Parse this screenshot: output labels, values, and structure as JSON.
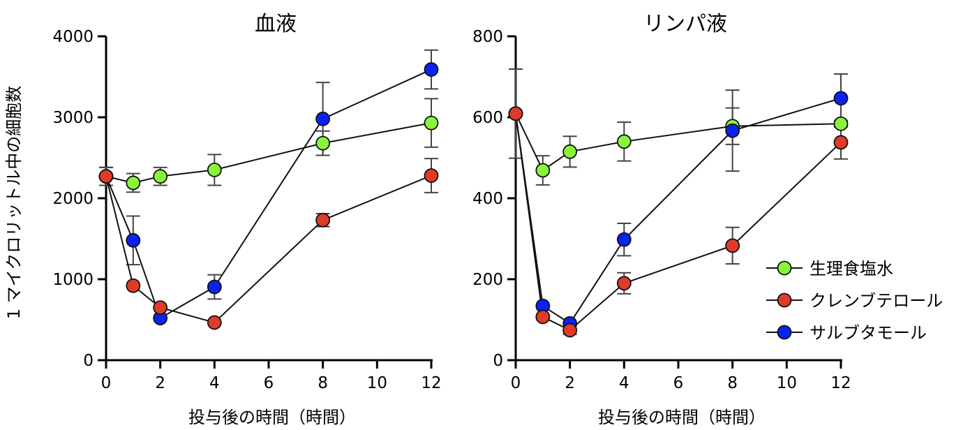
{
  "ylabel": "1 マイクロリットル中の細胞数",
  "legend": [
    {
      "name": "生理食塩水",
      "color": "#88f53a"
    },
    {
      "name": "クレンブテロール",
      "color": "#e03b2a"
    },
    {
      "name": "サルブタモール",
      "color": "#0a22f5"
    }
  ],
  "chart_data": [
    {
      "type": "line",
      "title": "血液",
      "xlabel": "投与後の時間（時間）",
      "ylabel": "1 マイクロリットル中の細胞数",
      "xlim": [
        0,
        12
      ],
      "ylim": [
        0,
        4000
      ],
      "xticks": [
        0,
        2,
        4,
        6,
        8,
        10,
        12
      ],
      "yticks": [
        0,
        1000,
        2000,
        3000,
        4000
      ],
      "x": [
        0,
        1,
        2,
        4,
        8,
        12
      ],
      "series": [
        {
          "name": "生理食塩水",
          "values": [
            2270,
            2190,
            2270,
            2350,
            2680,
            2930
          ],
          "error": [
            110,
            115,
            110,
            190,
            150,
            300
          ]
        },
        {
          "name": "クレンブテロール",
          "values": [
            2270,
            920,
            650,
            465,
            1730,
            2280
          ],
          "error": [
            110,
            0,
            0,
            0,
            80,
            210
          ]
        },
        {
          "name": "サルブタモール",
          "values": [
            2270,
            1480,
            520,
            905,
            2980,
            3590
          ],
          "error": [
            110,
            300,
            0,
            150,
            450,
            240
          ]
        }
      ]
    },
    {
      "type": "line",
      "title": "リンパ液",
      "xlabel": "投与後の時間（時間）",
      "xlim": [
        0,
        12
      ],
      "ylim": [
        0,
        800
      ],
      "xticks": [
        0,
        2,
        4,
        6,
        8,
        10,
        12
      ],
      "yticks": [
        0,
        200,
        400,
        600,
        800
      ],
      "x": [
        0,
        1,
        2,
        4,
        8,
        12
      ],
      "legend_position": "right",
      "series": [
        {
          "name": "生理食塩水",
          "values": [
            609,
            469,
            515,
            540,
            578,
            584
          ],
          "error": [
            110,
            36,
            38,
            48,
            45,
            8
          ]
        },
        {
          "name": "クレンブテロール",
          "values": [
            609,
            107,
            74,
            190,
            283,
            538
          ],
          "error": [
            0,
            0,
            10,
            26,
            45,
            41
          ]
        },
        {
          "name": "サルブタモール",
          "values": [
            609,
            134,
            91,
            298,
            567,
            647
          ],
          "error": [
            0,
            0,
            0,
            40,
            100,
            60
          ]
        }
      ]
    }
  ]
}
